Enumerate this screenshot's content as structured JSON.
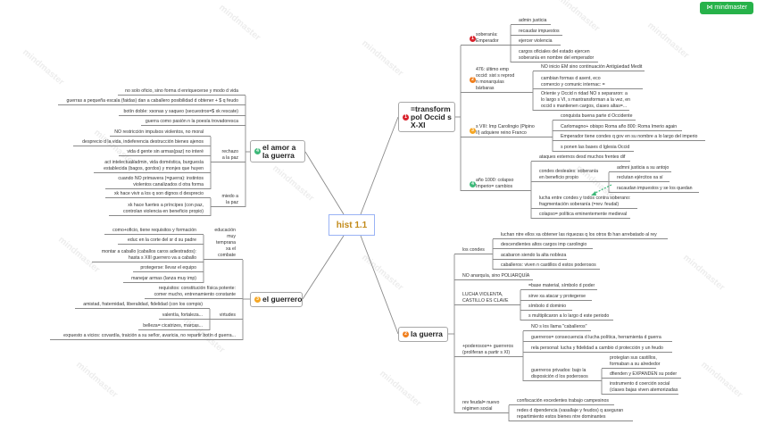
{
  "brand": {
    "label": "⋈ mindmaster",
    "color": "#27b24a"
  },
  "watermark": "mindmaster",
  "center": {
    "title": "hist 1.1",
    "color": "#c28a1a",
    "border": "#9ab3f5"
  },
  "badge_colors": {
    "1": "#d9232d",
    "2": "#f07f1e",
    "3": "#f5a623",
    "4": "#3cb878"
  },
  "t1": {
    "title": "=transform\npol Occid s\nX-XI",
    "badge": "1",
    "b1": {
      "label": "soberanía:\nEmperador",
      "badge": "1",
      "items": [
        "admin justicia",
        "recaudar impuestos",
        "ejercer violencia",
        "cargos oficiales del estado ejercen\nsoberanía en nombre del emperador"
      ]
    },
    "b2": {
      "label": "476: último emp\noccid: sist s reprod\nn monarquías\nbárbaras",
      "badge": "2",
      "items": [
        "NO inicio EM sino continuación Antigüedad Medit",
        "cambian formas d asent, eco\ncomercio y comunic internac: =",
        "Oriente y Occid n ridad NO s separaron: a\nlo largo s VI, s mantransforman a la vez, en\noccid s mantienen cargos, clases altas=..."
      ]
    },
    "b3": {
      "label": "s VIII: Imp Carolingio (Pipino\nII) adquiere reino Franco",
      "badge": "3",
      "items": [
        "conquista buena parte d Occidente",
        "Carlomagno+ obispo Roma año 800: Roma Imerio again",
        "Emperador tiene condes q gov en su nombre a lo largo del imperio",
        "s ponen las bases d Iglesia Occid"
      ]
    },
    "b4": {
      "label": "año 1000: colapso\nImperio= cambios",
      "badge": "4",
      "items": [
        "ataques externos desd muchos frentes dif",
        "condes desleales: soberanía\nen beneficio propio",
        "lucha entre condes y todos contra soberano:\nfragmentación soberanía (=rev. feudal)",
        "colapso= política eminentemente medieval"
      ],
      "sub": [
        "admni justicia a su antojo",
        "reclutan ejércitos xa sí",
        "racaudan impuestos y se los quedan"
      ]
    }
  },
  "t2": {
    "title": "la guerra",
    "badge": "2",
    "condes": {
      "label": "los condes",
      "items": [
        "luchan ntre ellos xa obtener las riquezas q los otros tb han arrebatado al rey",
        "descendientes altos cargos imp carolingio",
        "acabaron siendo la alta nobleza",
        "caballeros: viven n castillos d estos poderosos"
      ]
    },
    "poliarquia": "NO anarquía, sino POLIARQUÍA",
    "castillo": {
      "label": "LUCHA VIOLENTA,\nCASTILLO ES CLAVE",
      "items": [
        "=base material, símbolo d poder",
        "sirve xa atacar y protegerse",
        "símbolo d dominio",
        "s multiplicaron a lo largo d este periodo"
      ]
    },
    "poderosos": {
      "label": "+poderosos=+ guerreros\n(proliferan a partir s XI)",
      "items": [
        "NO s los llama \"caballeros\"",
        "guerreros= consecuencia d lucha política, herramienta d guerra",
        "rela personal: lucha y fidelidad a cambio d protección y un feudo",
        "guerreros privados: bajo la\ndisposición d los poderosos"
      ],
      "sub": [
        "protegían sus castillos,\nformaban a su alrededor",
        "dfienden y EXPANDEN su poder",
        "instrumento d coerción social\n(clases bajas viven atemorizadas"
      ]
    },
    "rev": {
      "label": "rev feudal= nuevo\nrégimen social",
      "items": [
        "confiscación excedentes trabajo campesinos",
        "redes d dpendencia (vasallaje y feudos) q aseguran\nrepartimiento estos bienes ntre dominantes"
      ]
    }
  },
  "t3": {
    "title": "el guerrero",
    "badge": "3",
    "educacion": {
      "label": "educación\nmuy\ntemprana\nxa el\ncombate",
      "items": [
        "como+oficio, tiene requisitos y formación",
        "educ en la corte del sr d su padre",
        "montar a caballo (caballos caros adiestrados):\nhasta s XIII guerrero va a caballo",
        "protegerse: llevar el equipo",
        "manejar armas (lanza muy imp)"
      ]
    },
    "requisitos": "requisitos: constitución física potente:\ncomer mucho, entrenamiento constante",
    "virtudes": {
      "label": "virtudes",
      "items": [
        "amistad, fraternidad, liberalidad, fidelidad (con los compis)",
        "valentía, fortaleza...",
        "belleza= cicatrizes, marcas..."
      ]
    },
    "vicios": "expuesto a vicios: covardía, traición a su señor, avaricia, no repartir botín d guerra..."
  },
  "t4": {
    "title": "el amor a\nla guerra",
    "badge": "4",
    "items": [
      "no solo oficio, sino forma d enriquecerse y modo d vida",
      "guerras a pequeña escala (faidas) dan a caballero posibilidad d obtener + $ q feudo",
      "botín doble: xsonas y saqueo (secuestros=$ xk rescate)",
      "guerra como pasión n la poesía trovadoresca"
    ],
    "rechazo": {
      "label": "rechazo\na la paz",
      "items": [
        "NO restricción impulsos violentos, no moral",
        "desprecio d la vida, indeferencia destrucción bienes ajenos",
        "vida d gente sin armas(paz) no interé",
        "act intelectual/admin, vida doméstica, burguesía\nestablecida (bagos, gordos) y monjes que huyen",
        "cuando NO primavera (=guerra): instintos\nviolentos canalizados d otra forma"
      ]
    },
    "miedo": {
      "label": "miedo a\nla paz",
      "items": [
        "xk hace vivir a los q son dignos d desprecio",
        "xk hace fuertes a príncipes (con paz,\ncontrolan violencia en beneficio propio)"
      ]
    }
  }
}
